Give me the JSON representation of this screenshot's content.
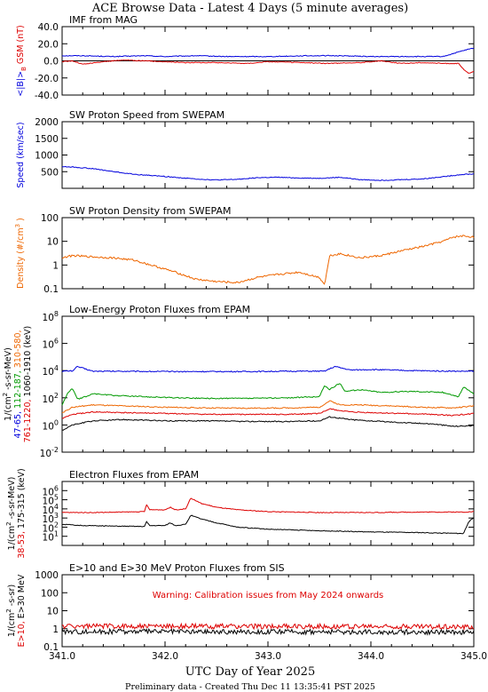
{
  "page": {
    "title": "ACE Browse Data - Latest 4 Days (5 minute averages)",
    "xlabel": "UTC Day of Year 2025",
    "footer": "Preliminary data - Created Thu Dec 11 13:35:41 PST 2025"
  },
  "colors": {
    "blue": "#0000dd",
    "red": "#dd0000",
    "green": "#009900",
    "orange": "#ee6600",
    "black": "#000000"
  },
  "chart_data": [
    {
      "type": "line",
      "title": "IMF from MAG",
      "ylabel_parts": [
        {
          "text": "<|B|>",
          "color": "blue"
        },
        {
          "text": "B",
          "color": "red",
          "sub": "z"
        },
        {
          "text": "GSM (nT)",
          "color": "red"
        }
      ],
      "yscale": "linear",
      "ylim": [
        -40,
        40
      ],
      "xlim": [
        341.0,
        345.0
      ],
      "ticks": [
        "40.0",
        "20.0",
        "0.0",
        "-20.0",
        "-40.0"
      ],
      "tick_values": [
        40,
        20,
        0,
        -20,
        -40
      ],
      "zero_line": true,
      "series": [
        {
          "color": "blue",
          "x": [
            341.0,
            341.2,
            341.5,
            341.8,
            342.0,
            342.3,
            342.6,
            343.0,
            343.4,
            343.7,
            344.0,
            344.4,
            344.7,
            344.9,
            345.0
          ],
          "y": [
            6,
            6,
            5,
            6,
            5,
            6,
            5,
            5,
            6,
            6,
            5,
            5,
            5,
            12,
            15
          ]
        },
        {
          "color": "red",
          "x": [
            341.0,
            341.1,
            341.2,
            341.4,
            341.6,
            341.8,
            342.0,
            342.2,
            342.5,
            342.8,
            343.0,
            343.3,
            343.6,
            343.9,
            344.1,
            344.3,
            344.5,
            344.7,
            344.85,
            344.9,
            344.95,
            345.0
          ],
          "y": [
            -1,
            0,
            -4,
            -1,
            1,
            0,
            -1,
            -2,
            -2,
            -3,
            -1,
            -2,
            -3,
            -2,
            0,
            -3,
            -2,
            -3,
            -3,
            -10,
            -15,
            -12
          ]
        }
      ]
    },
    {
      "type": "line",
      "title": "SW Proton Speed from SWEPAM",
      "ylabel_parts": [
        {
          "text": "Speed (km/sec)",
          "color": "blue"
        }
      ],
      "yscale": "linear",
      "ylim": [
        0,
        2000
      ],
      "xlim": [
        341.0,
        345.0
      ],
      "ticks": [
        "2000",
        "1500",
        "1000",
        "500"
      ],
      "tick_values": [
        2000,
        1500,
        1000,
        500
      ],
      "series": [
        {
          "color": "blue",
          "x": [
            341.0,
            341.1,
            341.3,
            341.5,
            341.7,
            341.9,
            342.1,
            342.3,
            342.5,
            342.7,
            342.9,
            343.1,
            343.3,
            343.5,
            343.7,
            343.9,
            344.1,
            344.3,
            344.5,
            344.7,
            344.9,
            345.0
          ],
          "y": [
            650,
            640,
            590,
            500,
            420,
            380,
            330,
            280,
            250,
            270,
            320,
            330,
            310,
            300,
            330,
            260,
            240,
            260,
            280,
            350,
            420,
            430
          ]
        }
      ]
    },
    {
      "type": "line",
      "title": "SW Proton Density from SWEPAM",
      "ylabel_parts": [
        {
          "text": "Density (#/cm",
          "color": "orange"
        },
        {
          "text": "3",
          "color": "orange",
          "sup": true
        },
        {
          "text": ")",
          "color": "orange"
        }
      ],
      "yscale": "log",
      "ylim": [
        0.1,
        100
      ],
      "xlim": [
        341.0,
        345.0
      ],
      "ticks": [
        "100",
        "10",
        "1",
        "0.1"
      ],
      "tick_values": [
        100,
        10,
        1,
        0.1
      ],
      "series": [
        {
          "color": "orange",
          "x": [
            341.0,
            341.1,
            341.3,
            341.5,
            341.7,
            341.9,
            342.1,
            342.3,
            342.5,
            342.7,
            342.9,
            343.1,
            343.3,
            343.5,
            343.55,
            343.6,
            343.7,
            343.9,
            344.1,
            344.3,
            344.5,
            344.7,
            344.8,
            344.9,
            345.0
          ],
          "y": [
            2,
            2.5,
            2.2,
            2,
            1.6,
            0.9,
            0.5,
            0.25,
            0.2,
            0.18,
            0.3,
            0.4,
            0.5,
            0.3,
            0.15,
            2.5,
            3,
            2,
            2.5,
            4,
            6,
            10,
            15,
            17,
            15
          ]
        }
      ]
    },
    {
      "type": "line",
      "title": "Low-Energy Proton Fluxes from EPAM",
      "ylabel_parts": [
        {
          "text": "1/(cm",
          "color": "black"
        },
        {
          "text": "2",
          "color": "black",
          "sup": true
        },
        {
          "text": "-s-sr-MeV)",
          "color": "black"
        }
      ],
      "ylabel_lines": [
        [
          {
            "text": "47-65, ",
            "color": "blue"
          },
          {
            "text": "112-187, ",
            "color": "green"
          },
          {
            "text": "310-580,",
            "color": "orange"
          }
        ],
        [
          {
            "text": "761-1220, ",
            "color": "red"
          },
          {
            "text": "1060-1910 (keV)",
            "color": "black"
          }
        ]
      ],
      "yscale": "log",
      "ylim": [
        0.01,
        100000000
      ],
      "xlim": [
        341.0,
        345.0
      ],
      "ticks_log": [
        {
          "base": "10",
          "exp": "8"
        },
        {
          "base": "10",
          "exp": "6"
        },
        {
          "base": "10",
          "exp": "4"
        },
        {
          "base": "10",
          "exp": "2"
        },
        {
          "base": "10",
          "exp": "0"
        },
        {
          "base": "10",
          "exp": "-2"
        }
      ],
      "tick_values": [
        100000000,
        1000000,
        10000,
        100,
        1,
        0.01
      ],
      "series": [
        {
          "color": "blue",
          "x": [
            341.0,
            341.1,
            341.15,
            341.3,
            341.6,
            342.0,
            342.4,
            342.8,
            343.2,
            343.55,
            343.65,
            343.8,
            344.0,
            344.4,
            344.8,
            345.0
          ],
          "y": [
            9000,
            9500,
            20000,
            9000,
            9000,
            8500,
            8500,
            8500,
            9000,
            9000,
            20000,
            11000,
            12000,
            10000,
            9000,
            9000
          ]
        },
        {
          "color": "green",
          "x": [
            341.0,
            341.05,
            341.1,
            341.15,
            341.2,
            341.3,
            341.5,
            341.8,
            342.1,
            342.4,
            342.8,
            343.2,
            343.5,
            343.55,
            343.6,
            343.7,
            343.75,
            343.9,
            344.1,
            344.4,
            344.7,
            344.85,
            344.9,
            345.0
          ],
          "y": [
            30,
            200,
            500,
            80,
            100,
            200,
            150,
            120,
            100,
            90,
            90,
            100,
            120,
            800,
            400,
            1200,
            300,
            400,
            250,
            300,
            250,
            120,
            600,
            200
          ]
        },
        {
          "color": "orange",
          "x": [
            341.0,
            341.1,
            341.3,
            341.6,
            342.0,
            342.4,
            342.8,
            343.2,
            343.5,
            343.6,
            343.7,
            343.9,
            344.2,
            344.5,
            344.8,
            345.0
          ],
          "y": [
            8,
            20,
            30,
            25,
            20,
            18,
            17,
            18,
            20,
            60,
            30,
            30,
            25,
            20,
            18,
            25
          ]
        },
        {
          "color": "red",
          "x": [
            341.0,
            341.1,
            341.3,
            341.6,
            342.0,
            342.4,
            342.8,
            343.2,
            343.5,
            343.6,
            343.8,
            344.0,
            344.3,
            344.6,
            344.8,
            345.0
          ],
          "y": [
            3,
            6,
            9,
            8,
            7,
            6,
            6,
            6,
            7,
            15,
            9,
            8,
            7,
            6,
            5,
            7
          ]
        },
        {
          "color": "black",
          "x": [
            341.0,
            341.1,
            341.3,
            341.6,
            342.0,
            342.4,
            342.8,
            343.2,
            343.5,
            343.6,
            343.8,
            344.0,
            344.3,
            344.6,
            344.8,
            345.0
          ],
          "y": [
            0.4,
            1,
            2,
            2.5,
            2,
            2,
            1.8,
            1.8,
            2,
            4,
            2.5,
            2,
            1.5,
            1.2,
            0.8,
            0.9
          ]
        }
      ]
    },
    {
      "type": "line",
      "title": "Electron Fluxes from EPAM",
      "ylabel_parts": [
        {
          "text": "1/(cm",
          "color": "black"
        },
        {
          "text": "2",
          "color": "black",
          "sup": true
        },
        {
          "text": "-s-sr-MeV)",
          "color": "black"
        }
      ],
      "ylabel_lines": [
        [
          {
            "text": "38-53, ",
            "color": "red"
          },
          {
            "text": "175-315 (keV)",
            "color": "black"
          }
        ]
      ],
      "yscale": "log",
      "ylim": [
        1,
        10000000
      ],
      "xlim": [
        341.0,
        345.0
      ],
      "ticks_log": [
        {
          "base": "10",
          "exp": "6"
        },
        {
          "base": "10",
          "exp": "5"
        },
        {
          "base": "10",
          "exp": "4"
        },
        {
          "base": "10",
          "exp": "3"
        },
        {
          "base": "10",
          "exp": "2"
        },
        {
          "base": "10",
          "exp": "1"
        }
      ],
      "tick_values": [
        1000000,
        100000,
        10000,
        1000,
        100,
        10
      ],
      "series": [
        {
          "color": "red",
          "x": [
            341.0,
            341.3,
            341.6,
            341.8,
            341.82,
            341.85,
            342.0,
            342.05,
            342.1,
            342.2,
            342.25,
            342.35,
            342.5,
            342.7,
            343.0,
            343.5,
            344.0,
            344.5,
            344.9,
            345.0
          ],
          "y": [
            4000,
            4000,
            4500,
            5000,
            30000,
            8000,
            8000,
            15000,
            8000,
            10000,
            150000,
            40000,
            15000,
            8000,
            5000,
            4000,
            4000,
            4500,
            4500,
            5000
          ]
        },
        {
          "color": "black",
          "x": [
            341.0,
            341.2,
            341.5,
            341.8,
            341.82,
            341.85,
            342.0,
            342.05,
            342.1,
            342.2,
            342.25,
            342.35,
            342.5,
            342.7,
            343.0,
            343.5,
            344.0,
            344.5,
            344.9,
            344.95,
            345.0
          ],
          "y": [
            200,
            150,
            130,
            120,
            400,
            150,
            150,
            300,
            150,
            200,
            2000,
            800,
            300,
            100,
            60,
            40,
            30,
            25,
            20,
            400,
            1000
          ]
        }
      ]
    },
    {
      "type": "line",
      "title": "E>10 and E>30 MeV Proton Fluxes from SIS",
      "ylabel_parts": [
        {
          "text": "1/(cm",
          "color": "black"
        },
        {
          "text": "2",
          "color": "black",
          "sup": true
        },
        {
          "text": "-s-sr)",
          "color": "black"
        }
      ],
      "ylabel_lines": [
        [
          {
            "text": "E>10, ",
            "color": "red"
          },
          {
            "text": "E>30 MeV",
            "color": "black"
          }
        ]
      ],
      "annotation": "Warning: Calibration issues from May 2024 onwards",
      "yscale": "log",
      "ylim": [
        0.1,
        1000
      ],
      "xlim": [
        341.0,
        345.0
      ],
      "ticks": [
        "1000",
        "100",
        "10",
        "1",
        "0.1"
      ],
      "tick_values": [
        1000,
        100,
        10,
        1,
        0.1
      ],
      "xticks": [
        "341.0",
        "342.0",
        "343.0",
        "344.0",
        "345.0"
      ],
      "xtick_values": [
        341.0,
        342.0,
        343.0,
        344.0,
        345.0
      ],
      "series": [
        {
          "color": "red",
          "x": [
            341.0,
            345.0
          ],
          "y": [
            1.4,
            1.3
          ]
        },
        {
          "color": "black",
          "x": [
            341.0,
            345.0
          ],
          "y": [
            0.7,
            0.65
          ]
        }
      ]
    }
  ]
}
